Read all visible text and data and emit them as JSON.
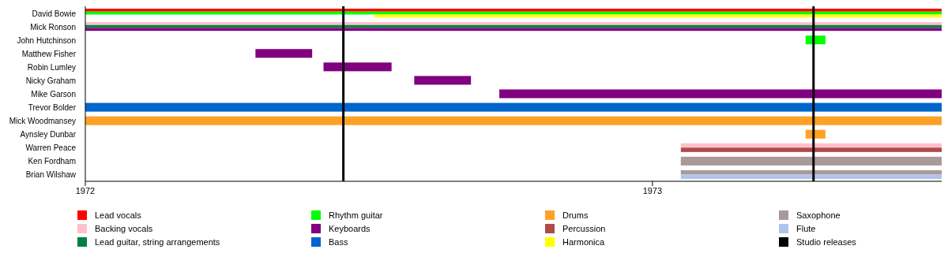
{
  "chart_data": {
    "type": "bar",
    "orientation": "horizontal",
    "categories": [
      "David Bowie",
      "Mick Ronson",
      "John Hutchinson",
      "Matthew Fisher",
      "Robin Lumley",
      "Nicky Graham",
      "Mike Garson",
      "Trevor Bolder",
      "Mick Woodmansey",
      "Aynsley Dunbar",
      "Warren Peace",
      "Ken Fordham",
      "Brian Wilshaw"
    ],
    "series": [
      {
        "name": "Lead vocals",
        "color": "#ff0000",
        "base": [
          1972,
          null,
          null,
          null,
          null,
          null,
          null,
          null,
          null,
          null,
          null,
          null,
          null
        ],
        "values": [
          1.51,
          null,
          null,
          null,
          null,
          null,
          null,
          null,
          null,
          null,
          null,
          null,
          null
        ]
      },
      {
        "name": "Backing vocals",
        "color": "#ffc0cb",
        "base": [
          null,
          1972,
          null,
          null,
          null,
          null,
          null,
          null,
          null,
          null,
          1973.05,
          null,
          null
        ],
        "values": [
          null,
          1.51,
          null,
          null,
          null,
          null,
          null,
          null,
          null,
          null,
          0.46,
          null,
          null
        ]
      },
      {
        "name": "Lead guitar, string arrangements",
        "color": "#008040",
        "base": [
          null,
          1972,
          null,
          null,
          null,
          null,
          null,
          null,
          null,
          null,
          null,
          null,
          null
        ],
        "values": [
          null,
          1.51,
          null,
          null,
          null,
          null,
          null,
          null,
          null,
          null,
          null,
          null,
          null
        ]
      },
      {
        "name": "Rhythm guitar",
        "color": "#00ff00",
        "base": [
          1972,
          null,
          1973.27,
          null,
          null,
          null,
          null,
          null,
          null,
          null,
          null,
          null,
          null
        ],
        "values": [
          1.51,
          null,
          0.035,
          null,
          null,
          null,
          null,
          null,
          null,
          null,
          null,
          null,
          null
        ]
      },
      {
        "name": "Keyboards",
        "color": "#800080",
        "base": [
          null,
          1972,
          null,
          1972.3,
          1972.42,
          1972.58,
          1972.73,
          null,
          null,
          null,
          null,
          null,
          null
        ],
        "values": [
          null,
          1.51,
          null,
          0.1,
          0.12,
          0.1,
          0.78,
          null,
          null,
          null,
          null,
          null,
          null
        ]
      },
      {
        "name": "Bass",
        "color": "#0066cc",
        "base": [
          null,
          null,
          null,
          null,
          null,
          null,
          null,
          1972,
          null,
          null,
          null,
          null,
          null
        ],
        "values": [
          null,
          null,
          null,
          null,
          null,
          null,
          null,
          1.51,
          null,
          null,
          null,
          null,
          null
        ]
      },
      {
        "name": "Drums",
        "color": "#ffa126",
        "base": [
          null,
          null,
          null,
          null,
          null,
          null,
          null,
          null,
          1972,
          1973.27,
          null,
          null,
          null
        ],
        "values": [
          null,
          null,
          null,
          null,
          null,
          null,
          null,
          null,
          1.51,
          0.035,
          null,
          null,
          null
        ]
      },
      {
        "name": "Percussion",
        "color": "#b04a4a",
        "base": [
          null,
          null,
          null,
          null,
          null,
          null,
          null,
          null,
          null,
          null,
          1973.05,
          null,
          null
        ],
        "values": [
          null,
          null,
          null,
          null,
          null,
          null,
          null,
          null,
          null,
          null,
          0.46,
          null,
          null
        ]
      },
      {
        "name": "Harmonica",
        "color": "#ffff00",
        "base": [
          1972.51,
          null,
          null,
          null,
          null,
          null,
          null,
          null,
          null,
          null,
          null,
          null,
          null
        ],
        "values": [
          1.0,
          null,
          null,
          null,
          null,
          null,
          null,
          null,
          null,
          null,
          null,
          null,
          null
        ]
      },
      {
        "name": "Saxophone",
        "color": "#aa9999",
        "base": [
          null,
          null,
          null,
          null,
          null,
          null,
          null,
          null,
          null,
          null,
          null,
          1973.05,
          1973.05
        ],
        "values": [
          null,
          null,
          null,
          null,
          null,
          null,
          null,
          null,
          null,
          null,
          null,
          0.46,
          0.46
        ]
      },
      {
        "name": "Flute",
        "color": "#b0c4ec",
        "base": [
          null,
          null,
          null,
          null,
          null,
          null,
          null,
          null,
          null,
          null,
          null,
          null,
          1973.05
        ],
        "values": [
          null,
          null,
          null,
          null,
          null,
          null,
          null,
          null,
          null,
          null,
          null,
          null,
          0.46
        ]
      }
    ],
    "xlim": [
      1972,
      1973.51
    ],
    "xticks": [
      1972,
      1973
    ],
    "ref_lines": [
      {
        "axis": "x",
        "value": 1972.455,
        "label": "Studio releases",
        "color": "#000000"
      },
      {
        "axis": "x",
        "value": 1973.284,
        "color": "#000000"
      }
    ],
    "grid": false,
    "legend": "bottom"
  }
}
